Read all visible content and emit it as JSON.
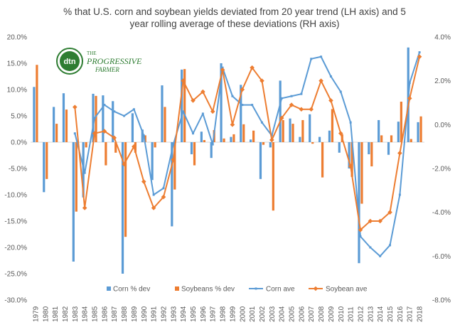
{
  "logo": {
    "badge": "dtn",
    "brand_line1": "THE",
    "brand_line2": "PROGRESSIVE",
    "brand_line3": "FARMER"
  },
  "chart_data": {
    "type": "bar+line",
    "title": [
      "% that U.S. corn and soybean yields deviated from 20 year trend (LH axis)  and 5",
      "year rolling average of these deviations (RH axis)"
    ],
    "categories": [
      "1979",
      "1980",
      "1981",
      "1982",
      "1983",
      "1984",
      "1985",
      "1986",
      "1987",
      "1988",
      "1989",
      "1990",
      "1991",
      "1992",
      "1993",
      "1994",
      "1995",
      "1996",
      "1997",
      "1998",
      "1999",
      "2000",
      "2001",
      "2002",
      "2003",
      "2004",
      "2005",
      "2006",
      "2007",
      "2008",
      "2009",
      "2010",
      "2011",
      "2012",
      "2013",
      "2014",
      "2015",
      "2016",
      "2017",
      "2018"
    ],
    "left_axis": {
      "min": -30,
      "max": 20,
      "step": 5,
      "tick_labels": [
        "20.0%",
        "15.0%",
        "10.0%",
        "5.0%",
        "0.0%",
        "-5.0%",
        "-10.0%",
        "-15.0%",
        "-20.0%",
        "-25.0%",
        "-30.0%"
      ]
    },
    "right_axis": {
      "min": -8,
      "max": 4,
      "step": 2,
      "tick_labels": [
        "4.0%",
        "2.0%",
        "0.0%",
        "-2.0%",
        "-4.0%",
        "-6.0%",
        "-8.0%"
      ]
    },
    "series": [
      {
        "name": "Corn % dev",
        "kind": "bar",
        "axis": "left",
        "color": "#5b9bd5",
        "values": [
          10.5,
          -9.5,
          6.7,
          9.3,
          -22.7,
          -10.5,
          9.2,
          8.9,
          7.8,
          -25.0,
          5.5,
          2.4,
          -7.2,
          10.8,
          -16.0,
          13.8,
          -2.3,
          2.0,
          -3.0,
          15.0,
          1.0,
          10.9,
          0.5,
          -7.0,
          -1.0,
          11.7,
          4.5,
          1.0,
          5.3,
          1.0,
          2.2,
          -2.0,
          -5.0,
          -23.0,
          -2.3,
          4.2,
          -2.4,
          3.9,
          18.0,
          3.8
        ]
      },
      {
        "name": "Soybeans % dev",
        "kind": "bar",
        "axis": "left",
        "color": "#ed7d31",
        "values": [
          14.7,
          -7.0,
          3.5,
          6.2,
          -13.2,
          -1.0,
          8.8,
          -4.4,
          -2.0,
          -18.0,
          -2.0,
          1.3,
          -1.0,
          6.7,
          -9.0,
          13.9,
          -4.4,
          0.4,
          2.3,
          0.7,
          1.5,
          3.4,
          2.2,
          -0.5,
          -13.0,
          4.2,
          3.5,
          4.2,
          -0.3,
          -6.7,
          6.3,
          1.5,
          -6.6,
          -11.7,
          -4.6,
          1.3,
          1.3,
          7.7,
          0.6,
          4.9
        ]
      },
      {
        "name": "Corn ave",
        "kind": "line",
        "axis": "right",
        "color": "#5b9bd5",
        "marker": "square",
        "values": [
          null,
          null,
          null,
          null,
          -0.4,
          -2.2,
          0.3,
          0.9,
          0.6,
          0.4,
          0.7,
          -0.5,
          -3.2,
          -2.9,
          -0.9,
          0.6,
          -0.4,
          0.5,
          -0.9,
          2.6,
          1.3,
          0.9,
          0.9,
          0.1,
          -0.5,
          1.2,
          1.3,
          1.4,
          3.0,
          3.1,
          2.2,
          1.5,
          0.1,
          -5.1,
          -5.6,
          -6.0,
          -5.5,
          -3.2,
          1.9,
          3.3
        ]
      },
      {
        "name": "Soybean ave",
        "kind": "line",
        "axis": "right",
        "color": "#ed7d31",
        "marker": "diamond",
        "values": [
          null,
          null,
          null,
          null,
          0.8,
          -3.8,
          -0.4,
          -0.3,
          -0.6,
          -1.8,
          -1.0,
          -2.6,
          -3.8,
          -3.3,
          -1.6,
          2.0,
          1.1,
          1.5,
          0.6,
          2.5,
          0.0,
          1.6,
          2.6,
          2.0,
          -0.7,
          0.3,
          0.9,
          0.7,
          0.7,
          2.0,
          1.1,
          -0.4,
          -1.9,
          -4.8,
          -4.4,
          -4.4,
          -4.0,
          -1.3,
          1.2,
          3.1
        ]
      }
    ],
    "legend_position": "bottom",
    "grid": false
  }
}
